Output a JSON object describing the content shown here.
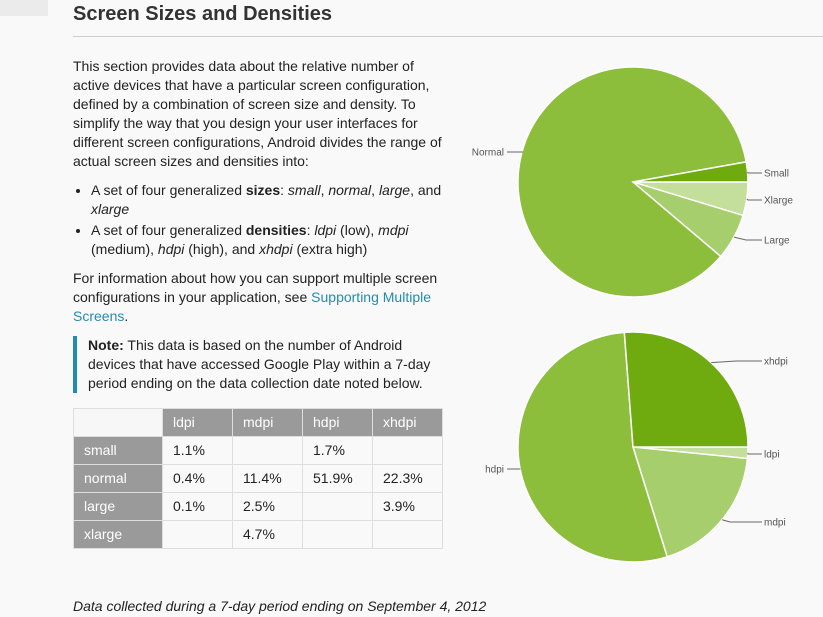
{
  "page": {
    "title": "Screen Sizes and Densities",
    "intro": "This section provides data about the relative number of active devices that have a particular screen configuration, defined by a combination of screen size and density. To simplify the way that you design your user interfaces for different screen configurations, Android divides the range of actual screen sizes and densities into:",
    "bullets": [
      {
        "prefix": "A set of four generalized ",
        "bold": "sizes",
        "mid": ": ",
        "italics": [
          "small",
          "normal",
          "large"
        ],
        "suffix_and": "and ",
        "last_italic": "xlarge"
      },
      {
        "prefix": "A set of four generalized ",
        "bold": "densities",
        "mid": ": ",
        "items": [
          {
            "term": "ldpi",
            "desc": " (low), "
          },
          {
            "term": "mdpi",
            "desc": " (medium), "
          },
          {
            "term": "hdpi",
            "desc": " (high), and "
          },
          {
            "term": "xhdpi",
            "desc": " (extra high)"
          }
        ]
      }
    ],
    "support_text": "For information about how you can support multiple screen configurations in your application, see ",
    "support_link": "Supporting Multiple Screens",
    "support_end": ".",
    "note_label": "Note:",
    "note_text": " This data is based on the number of Android devices that have accessed Google Play within a 7-day period ending on the data collection date noted below.",
    "footnote": "Data collected during a 7-day period ending on September 4, 2012"
  },
  "table": {
    "columns": [
      "ldpi",
      "mdpi",
      "hdpi",
      "xhdpi"
    ],
    "rows": [
      {
        "label": "small",
        "cells": [
          "1.1%",
          "",
          "1.7%",
          ""
        ]
      },
      {
        "label": "normal",
        "cells": [
          "0.4%",
          "11.4%",
          "51.9%",
          "22.3%"
        ]
      },
      {
        "label": "large",
        "cells": [
          "0.1%",
          "2.5%",
          "",
          "3.9%"
        ]
      },
      {
        "label": "xlarge",
        "cells": [
          "",
          "4.7%",
          "",
          ""
        ]
      }
    ]
  },
  "colors": {
    "link": "#258aaf",
    "header_gray": "#9a9a9a"
  },
  "chart_data": [
    {
      "type": "pie",
      "title": "Screen sizes",
      "slices": [
        {
          "label": "Xlarge",
          "value": 4.7,
          "color": "#c4df9b"
        },
        {
          "label": "Large",
          "value": 6.5,
          "color": "#a6ce6d"
        },
        {
          "label": "Normal",
          "value": 86.0,
          "color": "#8cbd3b"
        },
        {
          "label": "Small",
          "value": 2.8,
          "color": "#6fab0f"
        }
      ],
      "start": "3 o'clock, clockwise"
    },
    {
      "type": "pie",
      "title": "Screen densities",
      "slices": [
        {
          "label": "ldpi",
          "value": 1.6,
          "color": "#c4df9b"
        },
        {
          "label": "mdpi",
          "value": 18.6,
          "color": "#a6ce6d"
        },
        {
          "label": "hdpi",
          "value": 53.6,
          "color": "#8cbd3b"
        },
        {
          "label": "xhdpi",
          "value": 26.2,
          "color": "#6fab0f"
        }
      ],
      "start": "3 o'clock, clockwise"
    }
  ]
}
